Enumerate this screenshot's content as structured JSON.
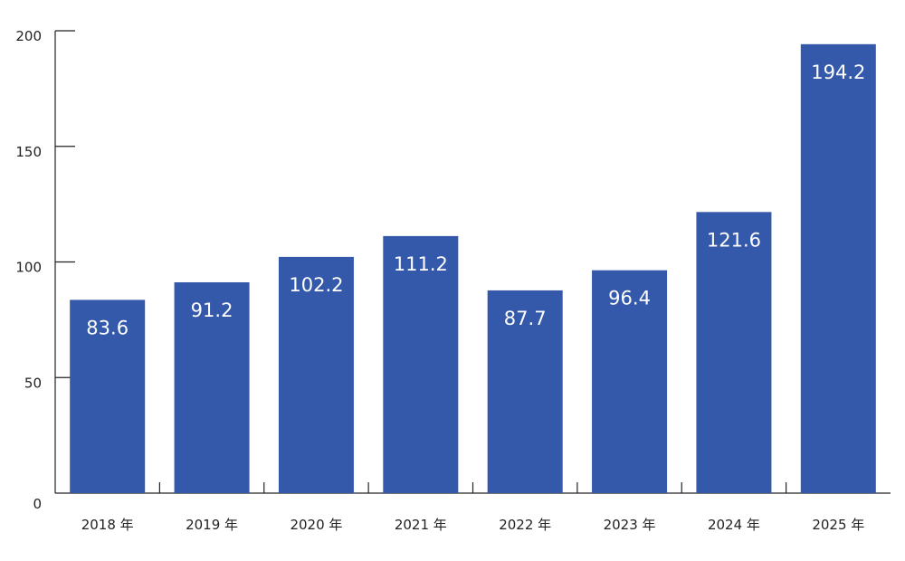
{
  "chart_data": {
    "type": "bar",
    "categories": [
      "2018 年",
      "2019 年",
      "2020 年",
      "2021 年",
      "2022 年",
      "2023 年",
      "2024 年",
      "2025 年"
    ],
    "values": [
      83.6,
      91.2,
      102.2,
      111.2,
      87.7,
      96.4,
      121.6,
      194.2
    ],
    "data_labels": [
      "83.6",
      "91.2",
      "102.2",
      "111.2",
      "87.7",
      "96.4",
      "121.6",
      "194.2"
    ],
    "y_ticks": [
      0,
      50,
      100,
      150,
      200
    ],
    "y_tick_labels": [
      "0",
      "50",
      "100",
      "150",
      "200"
    ],
    "ylim": [
      0,
      200
    ],
    "bar_color": "#3459AA",
    "label_color": "#ffffff",
    "grid": false,
    "legend": false
  }
}
